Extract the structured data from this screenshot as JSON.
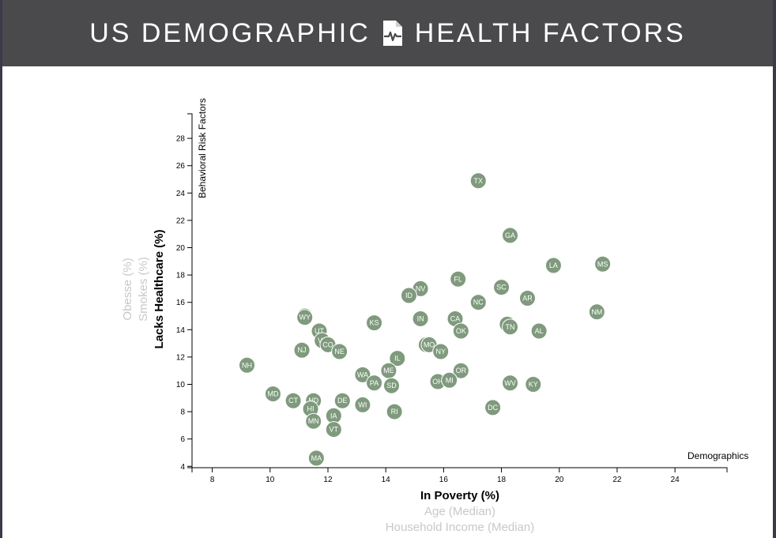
{
  "header": {
    "title_left": "US DEMOGRAPHIC",
    "title_right": "HEALTH FACTORS",
    "icon": "file-medical-icon"
  },
  "colors": {
    "header_bg": "#4a4a4c",
    "circle_fill": "#7f9a7d",
    "inactive_label": "#c8c8c8"
  },
  "chart_data": {
    "type": "scatter",
    "xlabel": "In Poverty (%)",
    "ylabel": "Lacks Healthcare (%)",
    "x_options": [
      "In Poverty (%)",
      "Age (Median)",
      "Household Income (Median)"
    ],
    "y_options": [
      "Lacks Healthcare (%)",
      "Smokes (%)",
      "Obesse (%)"
    ],
    "x_active": "In Poverty (%)",
    "y_active": "Lacks Healthcare (%)",
    "corner_label_x": "Demographics",
    "corner_label_y": "Behavioral Risk Factors",
    "xlim": [
      7.3,
      25.8
    ],
    "ylim": [
      3.9,
      29.8
    ],
    "xticks": [
      8,
      10,
      12,
      14,
      16,
      18,
      20,
      22,
      24
    ],
    "yticks": [
      4,
      6,
      8,
      10,
      12,
      14,
      16,
      18,
      20,
      22,
      24,
      26,
      28
    ],
    "grid": false,
    "points": [
      {
        "abbr": "TX",
        "x": 17.2,
        "y": 24.9
      },
      {
        "abbr": "GA",
        "x": 18.3,
        "y": 20.9
      },
      {
        "abbr": "LA",
        "x": 19.8,
        "y": 18.7
      },
      {
        "abbr": "MS",
        "x": 21.5,
        "y": 18.8
      },
      {
        "abbr": "FL",
        "x": 16.5,
        "y": 17.7
      },
      {
        "abbr": "SC",
        "x": 18.0,
        "y": 17.1
      },
      {
        "abbr": "NV",
        "x": 15.2,
        "y": 17.0
      },
      {
        "abbr": "ID",
        "x": 14.8,
        "y": 16.5
      },
      {
        "abbr": "AR",
        "x": 18.9,
        "y": 16.3
      },
      {
        "abbr": "NC",
        "x": 17.2,
        "y": 16.0
      },
      {
        "abbr": "NM",
        "x": 21.3,
        "y": 15.3
      },
      {
        "abbr": "AK",
        "x": 11.2,
        "y": 15.0
      },
      {
        "abbr": "WY",
        "x": 11.2,
        "y": 14.9
      },
      {
        "abbr": "IN",
        "x": 15.2,
        "y": 14.8
      },
      {
        "abbr": "CA",
        "x": 16.4,
        "y": 14.8
      },
      {
        "abbr": "AZ",
        "x": 18.2,
        "y": 14.4
      },
      {
        "abbr": "TN",
        "x": 18.3,
        "y": 14.2
      },
      {
        "abbr": "KS",
        "x": 13.6,
        "y": 14.5
      },
      {
        "abbr": "OK",
        "x": 16.6,
        "y": 13.9
      },
      {
        "abbr": "AL",
        "x": 19.3,
        "y": 13.9
      },
      {
        "abbr": "UT",
        "x": 11.7,
        "y": 13.9
      },
      {
        "abbr": "VA",
        "x": 11.8,
        "y": 13.2
      },
      {
        "abbr": "CO",
        "x": 12.0,
        "y": 12.9
      },
      {
        "abbr": "MT",
        "x": 15.4,
        "y": 12.9
      },
      {
        "abbr": "MO",
        "x": 15.5,
        "y": 12.9
      },
      {
        "abbr": "NJ",
        "x": 11.1,
        "y": 12.5
      },
      {
        "abbr": "NE",
        "x": 12.4,
        "y": 12.4
      },
      {
        "abbr": "NY",
        "x": 15.9,
        "y": 12.4
      },
      {
        "abbr": "IL",
        "x": 14.4,
        "y": 11.9
      },
      {
        "abbr": "NH",
        "x": 9.2,
        "y": 11.4
      },
      {
        "abbr": "ME",
        "x": 14.1,
        "y": 11.0
      },
      {
        "abbr": "OR",
        "x": 16.6,
        "y": 11.0
      },
      {
        "abbr": "WA",
        "x": 13.2,
        "y": 10.7
      },
      {
        "abbr": "PA",
        "x": 13.6,
        "y": 10.1
      },
      {
        "abbr": "SD",
        "x": 14.2,
        "y": 9.9
      },
      {
        "abbr": "OH",
        "x": 15.8,
        "y": 10.2
      },
      {
        "abbr": "MI",
        "x": 16.2,
        "y": 10.3
      },
      {
        "abbr": "WV",
        "x": 18.3,
        "y": 10.1
      },
      {
        "abbr": "KY",
        "x": 19.1,
        "y": 10.0
      },
      {
        "abbr": "MD",
        "x": 10.1,
        "y": 9.3
      },
      {
        "abbr": "CT",
        "x": 10.8,
        "y": 8.8
      },
      {
        "abbr": "ND",
        "x": 11.5,
        "y": 8.8
      },
      {
        "abbr": "DE",
        "x": 12.5,
        "y": 8.8
      },
      {
        "abbr": "WI",
        "x": 13.2,
        "y": 8.5
      },
      {
        "abbr": "DC",
        "x": 17.7,
        "y": 8.3
      },
      {
        "abbr": "HI",
        "x": 11.4,
        "y": 8.2
      },
      {
        "abbr": "RI",
        "x": 14.3,
        "y": 8.0
      },
      {
        "abbr": "IA",
        "x": 12.2,
        "y": 7.7
      },
      {
        "abbr": "MN",
        "x": 11.5,
        "y": 7.3
      },
      {
        "abbr": "VT",
        "x": 12.2,
        "y": 6.7
      },
      {
        "abbr": "MA",
        "x": 11.6,
        "y": 4.6
      }
    ]
  }
}
